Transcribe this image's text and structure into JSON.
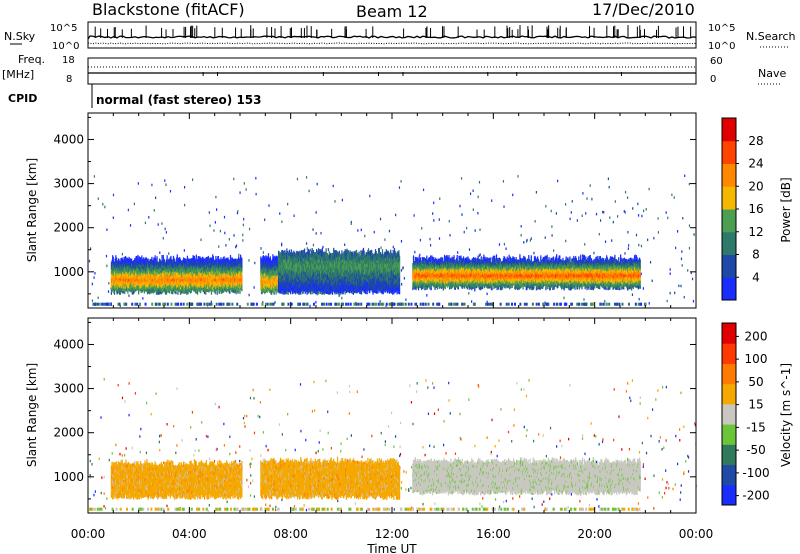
{
  "header": {
    "station": "Blackstone (fitACF)",
    "beam": "Beam 12",
    "date": "17/Dec/2010"
  },
  "status_panel": {
    "left_top": "N.Sky",
    "left_mid": "Freq.",
    "left_unit": "[MHz]",
    "left_bottom": "CPID",
    "left_tick_hi": "18",
    "left_tick_lo": "8",
    "sky_tick_hi": "10^5",
    "sky_tick_lo": "10^0",
    "right_top": "N.Search",
    "right_mid": "Nave",
    "right_tick_hi": "60",
    "right_tick_lo": "0",
    "right_sky_hi": "10^5",
    "right_sky_lo": "10^0",
    "cpid_text": "normal (fast stereo) 153"
  },
  "chart_data": [
    {
      "type": "heatmap",
      "name": "power-panel",
      "xlabel": "",
      "ylabel": "Slant Range [km]",
      "xlim": [
        0,
        24
      ],
      "ylim": [
        180,
        4600
      ],
      "yticks": [
        1000,
        2000,
        3000,
        4000
      ],
      "colorbar": {
        "label": "Power [dB]",
        "ticks": [
          "4",
          "8",
          "12",
          "16",
          "20",
          "24",
          "28"
        ],
        "colors": [
          "#1a2dff",
          "#1f49a8",
          "#2e7a6a",
          "#4b9e52",
          "#f5b800",
          "#ff8800",
          "#ff4400",
          "#e00000"
        ]
      },
      "bands": [
        {
          "t0": 0.9,
          "t1": 6.1,
          "r0": 550,
          "r1": 1300,
          "peak_r": 800,
          "level": 18
        },
        {
          "t0": 6.8,
          "t1": 10.5,
          "r0": 550,
          "r1": 1350,
          "peak_r": 750,
          "level": 16
        },
        {
          "t0": 7.5,
          "t1": 12.3,
          "r0": 550,
          "r1": 1450,
          "peak_r": 1100,
          "level": 8
        },
        {
          "t0": 12.8,
          "t1": 21.8,
          "r0": 650,
          "r1": 1300,
          "peak_r": 900,
          "level": 20
        }
      ]
    },
    {
      "type": "heatmap",
      "name": "velocity-panel",
      "xlabel": "Time UT",
      "ylabel": "Slant Range [km]",
      "xlim": [
        0,
        24
      ],
      "ylim": [
        180,
        4600
      ],
      "yticks": [
        1000,
        2000,
        3000,
        4000
      ],
      "xticks": [
        "00:00",
        "04:00",
        "08:00",
        "12:00",
        "16:00",
        "20:00",
        "00:00"
      ],
      "colorbar": {
        "label": "Velocity [m s^-1]",
        "ticks": [
          "200",
          "100",
          "50",
          "15",
          "-15",
          "-50",
          "-100",
          "-200"
        ],
        "colors": [
          "#1a2dff",
          "#1f4aa8",
          "#2e7a5a",
          "#6cc43a",
          "#c8c8c0",
          "#f5a800",
          "#ff7a00",
          "#ff3a00",
          "#e00000"
        ]
      },
      "bands": [
        {
          "t0": 0.9,
          "t1": 6.1,
          "r0": 550,
          "r1": 1300,
          "value": -50
        },
        {
          "t0": 6.8,
          "t1": 12.3,
          "r0": 550,
          "r1": 1350,
          "value": -50
        },
        {
          "t0": 12.8,
          "t1": 21.8,
          "r0": 650,
          "r1": 1350,
          "value": 0
        }
      ]
    }
  ]
}
